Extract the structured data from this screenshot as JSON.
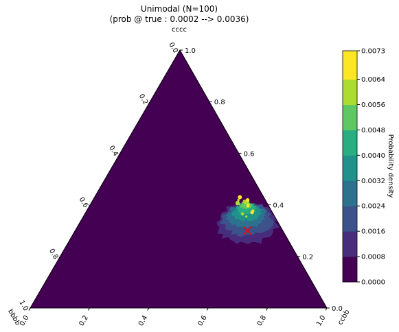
{
  "chart_data": {
    "type": "ternary_density",
    "title": "Unimodal (N=100)",
    "subtitle": "(prob @ true : 0.0002 --> 0.0036)",
    "axes": {
      "top": "cccc",
      "bottom_left": "bbbb",
      "bottom_right": "ccbb"
    },
    "left_ticks": [
      "0.0",
      "0.2",
      "0.4",
      "0.6",
      "0.8",
      "1.0"
    ],
    "right_ticks": [
      "1.0",
      "0.8",
      "0.6",
      "0.4",
      "0.2",
      "0.0"
    ],
    "bottom_ticks": [
      "0.0",
      "0.2",
      "0.4",
      "0.6",
      "0.8",
      "1.0"
    ],
    "colorbar": {
      "label": "Probability density",
      "ticks": [
        "0.0000",
        "0.0008",
        "0.0016",
        "0.0024",
        "0.0032",
        "0.0040",
        "0.0048",
        "0.0056",
        "0.0064",
        "0.0073"
      ],
      "levels": [
        0,
        0.0008,
        0.0016,
        0.0024,
        0.0032,
        0.004,
        0.0048,
        0.0056,
        0.0064,
        0.0073
      ],
      "colors": [
        "#440154",
        "#472d7b",
        "#3b528b",
        "#2c728e",
        "#21918c",
        "#28ae80",
        "#5ec962",
        "#addc30",
        "#fde725"
      ]
    },
    "density_peak": {
      "cccc": 0.39,
      "ccbb": 0.53,
      "bbbb": 0.08
    },
    "true_point": {
      "cccc": 0.3,
      "ccbb": 0.58,
      "bbbb": 0.12,
      "color": "#ff0000",
      "marker": "x"
    }
  }
}
